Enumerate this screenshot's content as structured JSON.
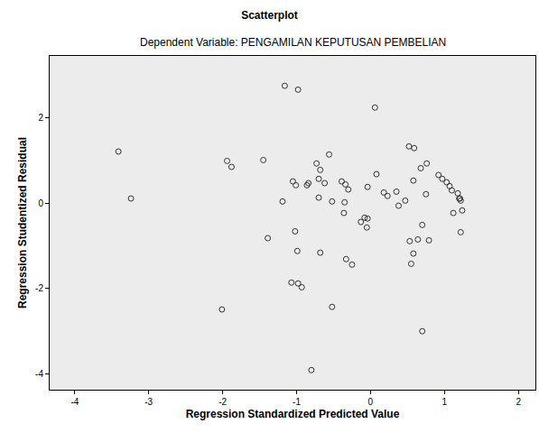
{
  "chart_data": {
    "type": "scatter",
    "title": "Scatterplot",
    "subtitle": "Dependent Variable: PENGAMILAN KEPUTUSAN PEMBELIAN",
    "x_label": "Regression Standardized Predicted Value",
    "y_label": "Regression Studentized Residual",
    "x": [
      -3.41,
      -3.24,
      -1.16,
      -0.98,
      0.06,
      -1.94,
      -1.88,
      -1.45,
      -1.19,
      -1.05,
      -1.01,
      -0.86,
      -0.84,
      -0.73,
      -0.68,
      -0.7,
      -0.62,
      -0.56,
      -0.7,
      -0.52,
      -0.39,
      -0.34,
      -0.35,
      -0.36,
      -0.3,
      -0.04,
      0.08,
      -0.13,
      -0.08,
      -0.04,
      -0.05,
      0.18,
      0.23,
      0.35,
      0.38,
      0.47,
      0.52,
      0.59,
      0.58,
      0.68,
      0.76,
      0.75,
      0.92,
      0.97,
      1.03,
      1.07,
      1.1,
      1.18,
      1.21,
      1.22,
      1.2,
      1.12,
      1.24,
      1.22,
      0.7,
      0.53,
      0.64,
      0.79,
      0.58,
      0.55,
      -1.39,
      -1.02,
      -0.99,
      -0.68,
      -0.33,
      -0.25,
      -1.07,
      -0.98,
      -0.93,
      -2.01,
      -0.52,
      0.7,
      -0.8
    ],
    "values": [
      1.21,
      0.11,
      2.75,
      2.66,
      2.24,
      0.99,
      0.85,
      1.01,
      0.04,
      0.51,
      0.42,
      0.42,
      0.47,
      0.93,
      0.78,
      0.57,
      0.47,
      1.14,
      0.13,
      0.04,
      0.51,
      0.44,
      0.02,
      -0.23,
      0.32,
      0.38,
      0.68,
      -0.44,
      -0.34,
      -0.36,
      -0.57,
      0.25,
      0.17,
      0.27,
      -0.06,
      0.06,
      1.33,
      1.29,
      0.53,
      0.82,
      0.93,
      0.21,
      0.66,
      0.57,
      0.49,
      0.4,
      0.3,
      0.23,
      0.11,
      0.06,
      0.11,
      -0.23,
      -0.17,
      -0.68,
      -0.51,
      -0.89,
      -0.85,
      -0.87,
      -1.18,
      -1.42,
      -0.82,
      -0.66,
      -1.12,
      -1.16,
      -1.31,
      -1.44,
      -1.86,
      -1.88,
      -1.97,
      -2.49,
      -2.43,
      -3.0,
      -3.91
    ],
    "color": "#333333",
    "marker": "circle-open",
    "xlim": [
      -4.34,
      2.23
    ],
    "ylim": [
      -4.37,
      3.45
    ],
    "xticks": [
      -4,
      -3,
      -2,
      -1,
      0,
      1,
      2
    ],
    "yticks": [
      -4,
      -2,
      0,
      2
    ],
    "grid": false
  }
}
